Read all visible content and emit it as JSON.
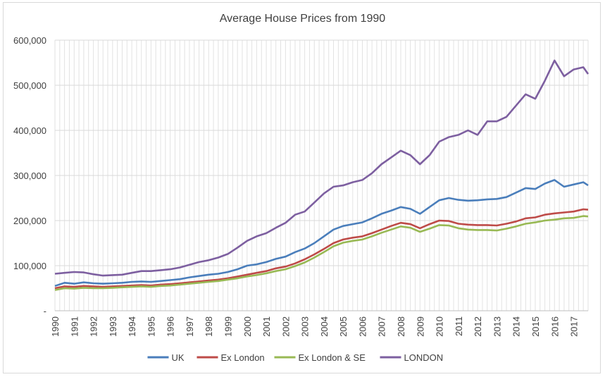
{
  "chart_data": {
    "type": "line",
    "title": "Average House Prices from 1990",
    "xlabel": "",
    "ylabel": "",
    "ylim": [
      0,
      600000
    ],
    "yticks": [
      0,
      100000,
      200000,
      300000,
      400000,
      500000,
      600000
    ],
    "ytick_labels": [
      "-",
      "100,000",
      "200,000",
      "300,000",
      "400,000",
      "500,000",
      "600,000"
    ],
    "xlim": [
      1990,
      2017.75
    ],
    "xticks": [
      "1990",
      "1991",
      "1992",
      "1993",
      "1994",
      "1995",
      "1996",
      "1997",
      "1998",
      "1999",
      "2000",
      "2001",
      "2002",
      "2003",
      "2004",
      "2005",
      "2006",
      "2007",
      "2008",
      "2009",
      "2010",
      "2011",
      "2012",
      "2013",
      "2014",
      "2015",
      "2016",
      "2017"
    ],
    "grid": true,
    "legend_position": "bottom",
    "series": [
      {
        "name": "UK",
        "color": "#4a7ebb",
        "points": [
          [
            1990,
            55000
          ],
          [
            1990.5,
            62000
          ],
          [
            1991,
            60000
          ],
          [
            1991.5,
            63000
          ],
          [
            1992,
            61000
          ],
          [
            1992.5,
            60000
          ],
          [
            1993,
            61000
          ],
          [
            1993.5,
            62000
          ],
          [
            1994,
            64000
          ],
          [
            1994.5,
            65000
          ],
          [
            1995,
            64000
          ],
          [
            1995.5,
            66000
          ],
          [
            1996,
            68000
          ],
          [
            1996.5,
            70000
          ],
          [
            1997,
            74000
          ],
          [
            1997.5,
            77000
          ],
          [
            1998,
            80000
          ],
          [
            1998.5,
            82000
          ],
          [
            1999,
            86000
          ],
          [
            1999.5,
            92000
          ],
          [
            2000,
            100000
          ],
          [
            2000.5,
            103000
          ],
          [
            2001,
            108000
          ],
          [
            2001.5,
            115000
          ],
          [
            2002,
            120000
          ],
          [
            2002.5,
            130000
          ],
          [
            2003,
            138000
          ],
          [
            2003.5,
            150000
          ],
          [
            2004,
            165000
          ],
          [
            2004.5,
            180000
          ],
          [
            2005,
            188000
          ],
          [
            2005.5,
            192000
          ],
          [
            2006,
            196000
          ],
          [
            2006.5,
            205000
          ],
          [
            2007,
            215000
          ],
          [
            2007.5,
            222000
          ],
          [
            2008,
            230000
          ],
          [
            2008.5,
            226000
          ],
          [
            2009,
            215000
          ],
          [
            2009.5,
            230000
          ],
          [
            2010,
            245000
          ],
          [
            2010.5,
            250000
          ],
          [
            2011,
            246000
          ],
          [
            2011.5,
            244000
          ],
          [
            2012,
            245000
          ],
          [
            2012.5,
            247000
          ],
          [
            2013,
            248000
          ],
          [
            2013.5,
            252000
          ],
          [
            2014,
            262000
          ],
          [
            2014.5,
            272000
          ],
          [
            2015,
            270000
          ],
          [
            2015.5,
            282000
          ],
          [
            2016,
            290000
          ],
          [
            2016.5,
            275000
          ],
          [
            2017,
            280000
          ],
          [
            2017.5,
            285000
          ],
          [
            2017.75,
            278000
          ]
        ]
      },
      {
        "name": "Ex London",
        "color": "#be4b48",
        "points": [
          [
            1990,
            50000
          ],
          [
            1990.5,
            54000
          ],
          [
            1991,
            53000
          ],
          [
            1991.5,
            55000
          ],
          [
            1992,
            54000
          ],
          [
            1992.5,
            53000
          ],
          [
            1993,
            54000
          ],
          [
            1993.5,
            55000
          ],
          [
            1994,
            56000
          ],
          [
            1994.5,
            57000
          ],
          [
            1995,
            56000
          ],
          [
            1995.5,
            58000
          ],
          [
            1996,
            59000
          ],
          [
            1996.5,
            61000
          ],
          [
            1997,
            63000
          ],
          [
            1997.5,
            65000
          ],
          [
            1998,
            67000
          ],
          [
            1998.5,
            69000
          ],
          [
            1999,
            72000
          ],
          [
            1999.5,
            76000
          ],
          [
            2000,
            80000
          ],
          [
            2000.5,
            84000
          ],
          [
            2001,
            88000
          ],
          [
            2001.5,
            94000
          ],
          [
            2002,
            98000
          ],
          [
            2002.5,
            105000
          ],
          [
            2003,
            114000
          ],
          [
            2003.5,
            125000
          ],
          [
            2004,
            137000
          ],
          [
            2004.5,
            150000
          ],
          [
            2005,
            158000
          ],
          [
            2005.5,
            162000
          ],
          [
            2006,
            165000
          ],
          [
            2006.5,
            172000
          ],
          [
            2007,
            180000
          ],
          [
            2007.5,
            188000
          ],
          [
            2008,
            195000
          ],
          [
            2008.5,
            192000
          ],
          [
            2009,
            183000
          ],
          [
            2009.5,
            192000
          ],
          [
            2010,
            200000
          ],
          [
            2010.5,
            199000
          ],
          [
            2011,
            193000
          ],
          [
            2011.5,
            191000
          ],
          [
            2012,
            190000
          ],
          [
            2012.5,
            190000
          ],
          [
            2013,
            189000
          ],
          [
            2013.5,
            193000
          ],
          [
            2014,
            198000
          ],
          [
            2014.5,
            205000
          ],
          [
            2015,
            207000
          ],
          [
            2015.5,
            213000
          ],
          [
            2016,
            216000
          ],
          [
            2016.5,
            218000
          ],
          [
            2017,
            220000
          ],
          [
            2017.5,
            225000
          ],
          [
            2017.75,
            224000
          ]
        ]
      },
      {
        "name": "Ex London & SE",
        "color": "#98b954",
        "points": [
          [
            1990,
            46000
          ],
          [
            1990.5,
            50000
          ],
          [
            1991,
            49000
          ],
          [
            1991.5,
            51000
          ],
          [
            1992,
            50000
          ],
          [
            1992.5,
            50000
          ],
          [
            1993,
            51000
          ],
          [
            1993.5,
            52000
          ],
          [
            1994,
            53000
          ],
          [
            1994.5,
            54000
          ],
          [
            1995,
            53000
          ],
          [
            1995.5,
            55000
          ],
          [
            1996,
            56000
          ],
          [
            1996.5,
            58000
          ],
          [
            1997,
            60000
          ],
          [
            1997.5,
            62000
          ],
          [
            1998,
            64000
          ],
          [
            1998.5,
            66000
          ],
          [
            1999,
            69000
          ],
          [
            1999.5,
            72000
          ],
          [
            2000,
            76000
          ],
          [
            2000.5,
            79000
          ],
          [
            2001,
            83000
          ],
          [
            2001.5,
            88000
          ],
          [
            2002,
            92000
          ],
          [
            2002.5,
            99000
          ],
          [
            2003,
            107000
          ],
          [
            2003.5,
            118000
          ],
          [
            2004,
            130000
          ],
          [
            2004.5,
            143000
          ],
          [
            2005,
            151000
          ],
          [
            2005.5,
            155000
          ],
          [
            2006,
            158000
          ],
          [
            2006.5,
            165000
          ],
          [
            2007,
            173000
          ],
          [
            2007.5,
            180000
          ],
          [
            2008,
            187000
          ],
          [
            2008.5,
            184000
          ],
          [
            2009,
            175000
          ],
          [
            2009.5,
            182000
          ],
          [
            2010,
            190000
          ],
          [
            2010.5,
            189000
          ],
          [
            2011,
            183000
          ],
          [
            2011.5,
            180000
          ],
          [
            2012,
            179000
          ],
          [
            2012.5,
            179000
          ],
          [
            2013,
            178000
          ],
          [
            2013.5,
            182000
          ],
          [
            2014,
            187000
          ],
          [
            2014.5,
            193000
          ],
          [
            2015,
            196000
          ],
          [
            2015.5,
            200000
          ],
          [
            2016,
            202000
          ],
          [
            2016.5,
            205000
          ],
          [
            2017,
            206000
          ],
          [
            2017.5,
            210000
          ],
          [
            2017.75,
            209000
          ]
        ]
      },
      {
        "name": "LONDON",
        "color": "#7d5fa0",
        "points": [
          [
            1990,
            82000
          ],
          [
            1990.5,
            84000
          ],
          [
            1991,
            86000
          ],
          [
            1991.5,
            85000
          ],
          [
            1992,
            81000
          ],
          [
            1992.5,
            78000
          ],
          [
            1993,
            79000
          ],
          [
            1993.5,
            80000
          ],
          [
            1994,
            84000
          ],
          [
            1994.5,
            88000
          ],
          [
            1995,
            88000
          ],
          [
            1995.5,
            90000
          ],
          [
            1996,
            92000
          ],
          [
            1996.5,
            96000
          ],
          [
            1997,
            102000
          ],
          [
            1997.5,
            108000
          ],
          [
            1998,
            112000
          ],
          [
            1998.5,
            118000
          ],
          [
            1999,
            126000
          ],
          [
            1999.5,
            140000
          ],
          [
            2000,
            155000
          ],
          [
            2000.5,
            165000
          ],
          [
            2001,
            172000
          ],
          [
            2001.5,
            184000
          ],
          [
            2002,
            195000
          ],
          [
            2002.5,
            213000
          ],
          [
            2003,
            220000
          ],
          [
            2003.5,
            240000
          ],
          [
            2004,
            260000
          ],
          [
            2004.5,
            275000
          ],
          [
            2005,
            278000
          ],
          [
            2005.5,
            285000
          ],
          [
            2006,
            290000
          ],
          [
            2006.5,
            305000
          ],
          [
            2007,
            325000
          ],
          [
            2007.5,
            340000
          ],
          [
            2008,
            355000
          ],
          [
            2008.5,
            345000
          ],
          [
            2009,
            325000
          ],
          [
            2009.5,
            345000
          ],
          [
            2010,
            375000
          ],
          [
            2010.5,
            385000
          ],
          [
            2011,
            390000
          ],
          [
            2011.5,
            400000
          ],
          [
            2012,
            390000
          ],
          [
            2012.5,
            420000
          ],
          [
            2013,
            420000
          ],
          [
            2013.5,
            430000
          ],
          [
            2014,
            455000
          ],
          [
            2014.5,
            480000
          ],
          [
            2015,
            470000
          ],
          [
            2015.5,
            510000
          ],
          [
            2016,
            555000
          ],
          [
            2016.5,
            520000
          ],
          [
            2017,
            535000
          ],
          [
            2017.5,
            540000
          ],
          [
            2017.75,
            525000
          ]
        ]
      }
    ]
  }
}
